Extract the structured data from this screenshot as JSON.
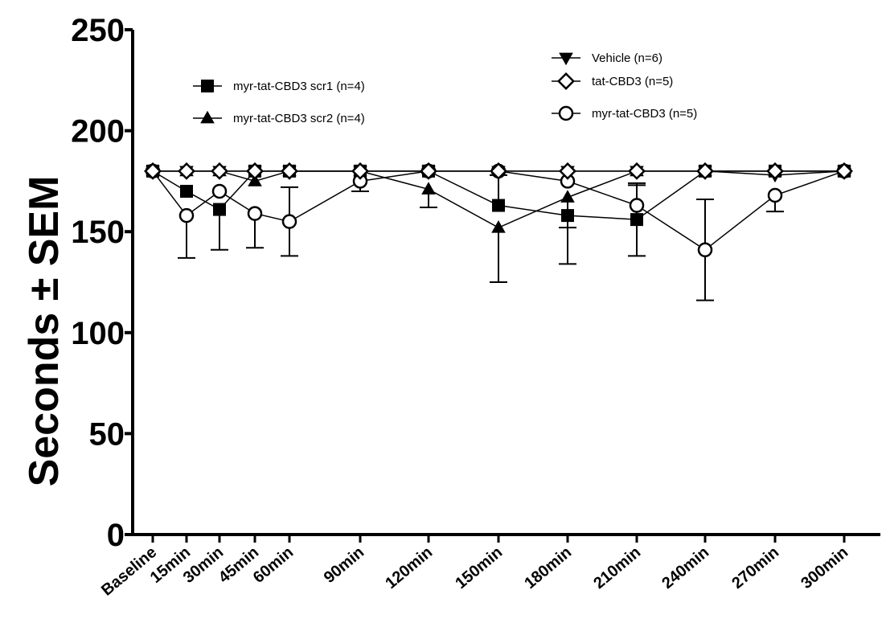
{
  "chart_data": {
    "type": "line",
    "title": "",
    "xlabel": "",
    "ylabel": "Seconds ± SEM",
    "ylim": [
      0,
      250
    ],
    "yticks": [
      0,
      50,
      100,
      150,
      200,
      250
    ],
    "grid": false,
    "categories": [
      "Baseline",
      "15min",
      "30min",
      "45min",
      "60min",
      "90min",
      "120min",
      "150min",
      "180min",
      "210min",
      "240min",
      "270min",
      "300min"
    ],
    "x": [
      0,
      15,
      30,
      45,
      60,
      90,
      120,
      150,
      180,
      210,
      240,
      270,
      300
    ],
    "series": [
      {
        "name": "Vehicle (n=6)",
        "marker": "triangle-down",
        "values": [
          180,
          180,
          180,
          180,
          180,
          180,
          180,
          180,
          180,
          180,
          180,
          178,
          180
        ],
        "err_up": [
          0,
          0,
          0,
          0,
          0,
          0,
          0,
          0,
          0,
          0,
          0,
          0,
          0
        ],
        "err_down": [
          0,
          0,
          0,
          0,
          0,
          0,
          0,
          0,
          0,
          0,
          0,
          0,
          0
        ]
      },
      {
        "name": "tat-CBD3 (n=5)",
        "marker": "diamond-open",
        "values": [
          180,
          180,
          180,
          180,
          180,
          180,
          180,
          180,
          180,
          180,
          180,
          180,
          180
        ],
        "err_up": [
          0,
          0,
          0,
          0,
          0,
          0,
          0,
          0,
          0,
          0,
          0,
          0,
          0
        ],
        "err_down": [
          0,
          0,
          0,
          0,
          0,
          0,
          0,
          0,
          0,
          0,
          0,
          0,
          0
        ]
      },
      {
        "name": "myr-tat-CBD3 (n=5)",
        "marker": "circle-open",
        "values": [
          180,
          158,
          170,
          159,
          155,
          175,
          180,
          180,
          175,
          163,
          141,
          168,
          180
        ],
        "err_up": [
          0,
          0,
          0,
          0,
          17,
          0,
          0,
          0,
          0,
          10,
          25,
          0,
          0
        ],
        "err_down": [
          0,
          21,
          0,
          17,
          17,
          5,
          0,
          0,
          0,
          0,
          25,
          8,
          0
        ]
      },
      {
        "name": "myr-tat-CBD3 scr1 (n=4)",
        "marker": "square",
        "values": [
          180,
          170,
          161,
          180,
          180,
          180,
          180,
          163,
          158,
          156,
          180,
          180,
          180
        ],
        "err_up": [
          0,
          0,
          0,
          0,
          0,
          0,
          0,
          15,
          0,
          18,
          0,
          0,
          0
        ],
        "err_down": [
          0,
          0,
          20,
          0,
          0,
          0,
          0,
          0,
          6,
          18,
          0,
          0,
          0
        ]
      },
      {
        "name": "myr-tat-CBD3 scr2 (n=4)",
        "marker": "triangle-up",
        "values": [
          180,
          180,
          180,
          175,
          180,
          180,
          171,
          152,
          167,
          180,
          180,
          180,
          180
        ],
        "err_up": [
          0,
          0,
          0,
          0,
          0,
          0,
          0,
          0,
          0,
          0,
          0,
          0,
          0
        ],
        "err_down": [
          0,
          0,
          0,
          0,
          0,
          0,
          9,
          27,
          33,
          0,
          0,
          0,
          0
        ]
      }
    ],
    "legend_groups": [
      [
        "myr-tat-CBD3 scr1 (n=4)",
        "myr-tat-CBD3 scr2 (n=4)"
      ],
      [
        "Vehicle (n=6)",
        "tat-CBD3 (n=5)",
        "myr-tat-CBD3 (n=5)"
      ]
    ]
  }
}
